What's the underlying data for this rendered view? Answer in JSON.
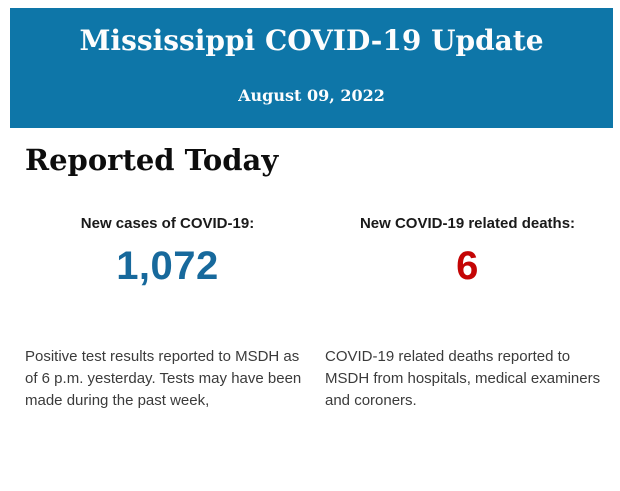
{
  "header": {
    "title": "Mississippi COVID-19 Update",
    "date": "August 09, 2022",
    "background_color": "#0e76a8",
    "text_color": "#fdfdfd"
  },
  "section": {
    "heading": "Reported Today"
  },
  "stats": {
    "cases": {
      "label": "New cases of COVID-19:",
      "value": "1,072",
      "value_color": "#17699c",
      "description": "Positive test results reported to MSDH as of 6 p.m. yesterday. Tests may have been made during the past week,"
    },
    "deaths": {
      "label": "New COVID-19 related deaths:",
      "value": "6",
      "value_color": "#c40505",
      "description": "COVID-19 related deaths reported to MSDH from hospitals, medical examiners and coroners."
    }
  }
}
